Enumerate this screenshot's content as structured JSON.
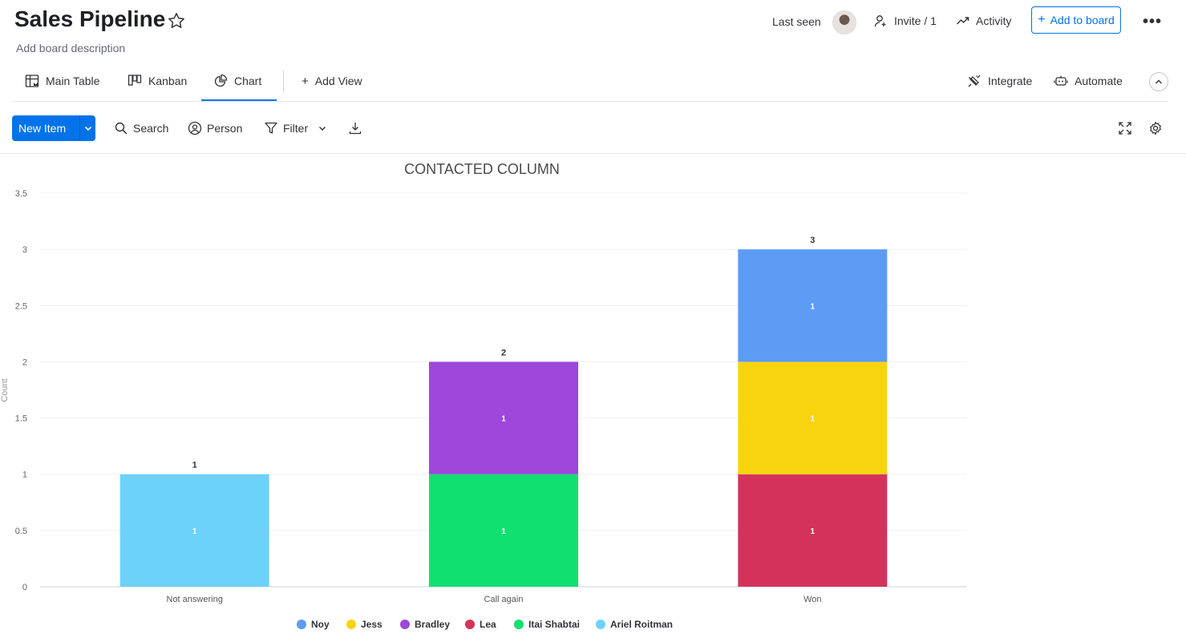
{
  "board": {
    "title": "Sales Pipeline",
    "description": "Add board description"
  },
  "header": {
    "last_seen_label": "Last seen",
    "invite_label": "Invite / 1",
    "activity_label": "Activity",
    "add_to_board_label": "Add to board"
  },
  "tabs": [
    {
      "label": "Main Table",
      "icon": "table-icon"
    },
    {
      "label": "Kanban",
      "icon": "kanban-icon"
    },
    {
      "label": "Chart",
      "icon": "pie-chart-icon",
      "active": true
    }
  ],
  "add_view_label": "Add View",
  "right_tabs": {
    "integrate_label": "Integrate",
    "automate_label": "Automate"
  },
  "toolbar": {
    "new_item_label": "New Item",
    "search_label": "Search",
    "person_label": "Person",
    "filter_label": "Filter"
  },
  "colors": {
    "accent": "#0073ea"
  },
  "chart_data": {
    "type": "bar",
    "stacked": true,
    "title": "CONTACTED COLUMN",
    "xlabel": "",
    "ylabel": "Count",
    "ylim": [
      0,
      3.5
    ],
    "yticks": [
      "0",
      "0.5",
      "1",
      "1.5",
      "2",
      "2.5",
      "3",
      "3.5"
    ],
    "categories": [
      "Not answering",
      "Call again",
      "Won"
    ],
    "totals": [
      "1",
      "2",
      "3"
    ],
    "grid": true,
    "legend_position": "bottom",
    "series": [
      {
        "name": "Noy",
        "color": "#5c9cf5",
        "values": [
          0,
          0,
          1
        ]
      },
      {
        "name": "Jess",
        "color": "#f9d30e",
        "values": [
          0,
          0,
          1
        ]
      },
      {
        "name": "Bradley",
        "color": "#9d47db",
        "values": [
          0,
          1,
          0
        ]
      },
      {
        "name": "Lea",
        "color": "#d5325b",
        "values": [
          0,
          0,
          1
        ]
      },
      {
        "name": "Itai Shabtai",
        "color": "#10e070",
        "values": [
          0,
          1,
          0
        ]
      },
      {
        "name": "Ariel Roitman",
        "color": "#6cd2fa",
        "values": [
          1,
          0,
          0
        ]
      }
    ]
  }
}
